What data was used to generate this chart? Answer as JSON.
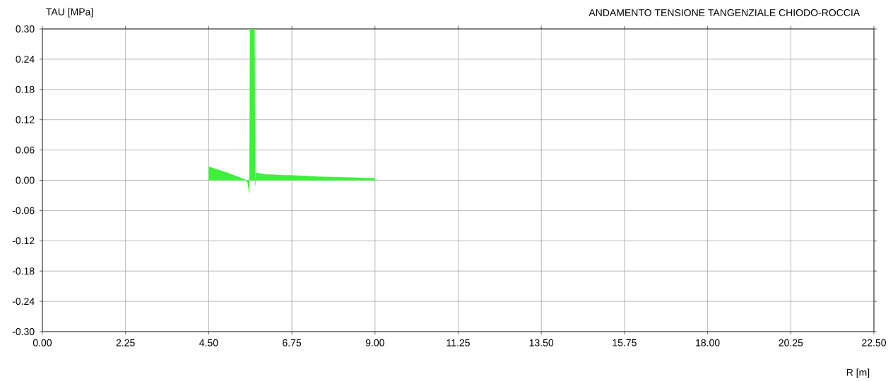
{
  "chart_data": {
    "type": "area",
    "title": "ANDAMENTO TENSIONE TANGENZIALE CHIODO-ROCCIA",
    "xlabel": "R [m]",
    "ylabel": "TAU [MPa]",
    "x": [
      4.5,
      4.75,
      5.0,
      5.25,
      5.5,
      5.55,
      5.6,
      5.62,
      5.74,
      5.76,
      5.78,
      6.0,
      6.5,
      7.0,
      7.5,
      8.0,
      8.5,
      9.0
    ],
    "series": [
      {
        "color": "#3cf03c",
        "values": [
          0.027,
          0.021,
          0.015,
          0.008,
          0.001,
          -0.004,
          -0.025,
          0.3,
          0.3,
          -0.01,
          0.015,
          0.012,
          0.01,
          0.009,
          0.007,
          0.006,
          0.005,
          0.004
        ]
      }
    ],
    "xlim": [
      0,
      22.5
    ],
    "ylim": [
      -0.3,
      0.3
    ],
    "xticks": [
      {
        "value": 0,
        "label": "0.00"
      },
      {
        "value": 2.25,
        "label": "2.25"
      },
      {
        "value": 4.5,
        "label": "4.50"
      },
      {
        "value": 6.75,
        "label": "6.75"
      },
      {
        "value": 9,
        "label": "9.00"
      },
      {
        "value": 11.25,
        "label": "11.25"
      },
      {
        "value": 13.5,
        "label": "13.50"
      },
      {
        "value": 15.75,
        "label": "15.75"
      },
      {
        "value": 18,
        "label": "18.00"
      },
      {
        "value": 20.25,
        "label": "20.25"
      },
      {
        "value": 22.5,
        "label": "22.50"
      }
    ],
    "yticks": [
      {
        "value": -0.3,
        "label": "-0.30"
      },
      {
        "value": -0.24,
        "label": "-0.24"
      },
      {
        "value": -0.18,
        "label": "-0.18"
      },
      {
        "value": -0.12,
        "label": "-0.12"
      },
      {
        "value": -0.06,
        "label": "-0.06"
      },
      {
        "value": 0,
        "label": "0.00"
      },
      {
        "value": 0.06,
        "label": "0.06"
      },
      {
        "value": 0.12,
        "label": "0.12"
      },
      {
        "value": 0.18,
        "label": "0.18"
      },
      {
        "value": 0.24,
        "label": "0.24"
      },
      {
        "value": 0.3,
        "label": "0.30"
      }
    ],
    "grid": true
  }
}
